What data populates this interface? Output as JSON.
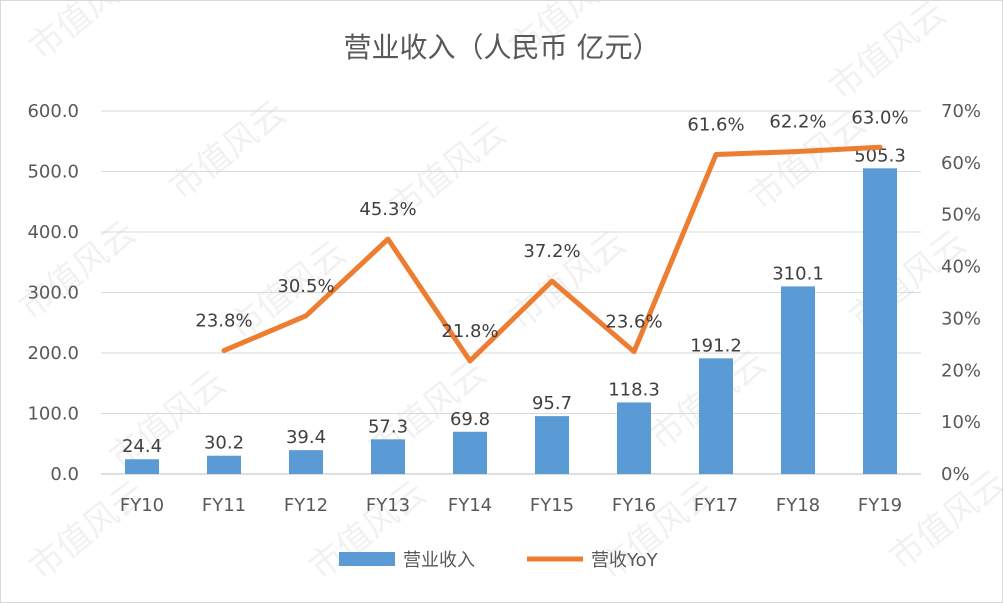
{
  "chart_data": {
    "type": "bar+line",
    "title": "营业收入（人民币 亿元）",
    "categories": [
      "FY10",
      "FY11",
      "FY12",
      "FY13",
      "FY14",
      "FY15",
      "FY16",
      "FY17",
      "FY18",
      "FY19"
    ],
    "series": [
      {
        "name": "营业收入",
        "type": "bar",
        "axis": "left",
        "values": [
          24.4,
          30.2,
          39.4,
          57.3,
          69.8,
          95.7,
          118.3,
          191.2,
          310.1,
          505.3
        ],
        "labels": [
          "24.4",
          "30.2",
          "39.4",
          "57.3",
          "69.8",
          "95.7",
          "118.3",
          "191.2",
          "310.1",
          "505.3"
        ],
        "color": "#5b9bd5"
      },
      {
        "name": "营收YoY",
        "type": "line",
        "axis": "right",
        "values": [
          null,
          23.8,
          30.5,
          45.3,
          21.8,
          37.2,
          23.6,
          61.6,
          62.2,
          63.0
        ],
        "labels": [
          "",
          "23.8%",
          "30.5%",
          "45.3%",
          "21.8%",
          "37.2%",
          "23.6%",
          "61.6%",
          "62.2%",
          "63.0%"
        ],
        "color": "#ed7d31"
      }
    ],
    "y_left": {
      "ylim": [
        0,
        600
      ],
      "ticks": [
        "0.0",
        "100.0",
        "200.0",
        "300.0",
        "400.0",
        "500.0",
        "600.0"
      ]
    },
    "y_right": {
      "ylim": [
        0,
        70
      ],
      "ticks": [
        "0%",
        "10%",
        "20%",
        "30%",
        "40%",
        "50%",
        "60%",
        "70%"
      ]
    },
    "grid": "horizontal",
    "legend": "bottom-center",
    "watermark": "市值风云"
  }
}
